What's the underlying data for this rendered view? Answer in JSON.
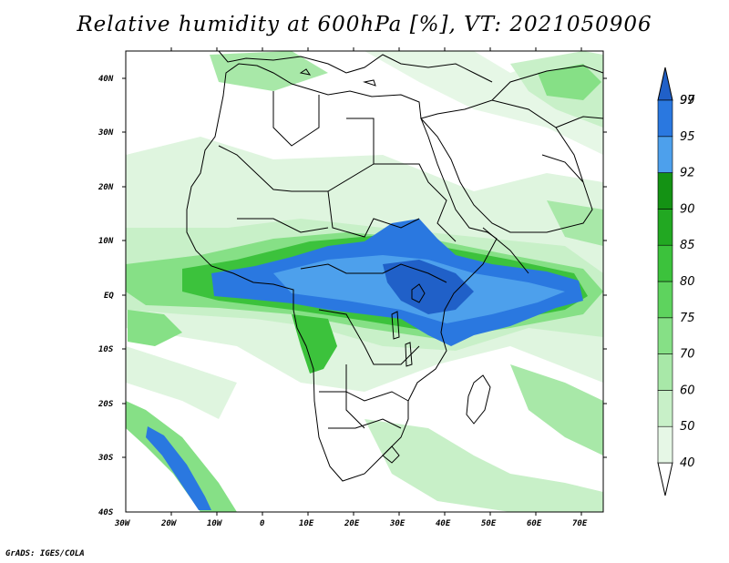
{
  "title": "Relative humidity at 600hPa [%], VT: 2021050906",
  "credit": "GrADS: IGES/COLA",
  "lat_labels": [
    "40N",
    "30N",
    "20N",
    "10N",
    "EQ",
    "10S",
    "20S",
    "30S",
    "40S"
  ],
  "lon_labels": [
    "30W",
    "20W",
    "10W",
    "0",
    "10E",
    "20E",
    "30E",
    "40E",
    "50E",
    "60E",
    "70E"
  ],
  "colorbar": {
    "levels": [
      "40",
      "50",
      "60",
      "70",
      "75",
      "80",
      "85",
      "90",
      "92",
      "95",
      "97",
      "99"
    ],
    "colors": [
      "#ffffff",
      "#e6f7e6",
      "#c8f0c8",
      "#a8e8a8",
      "#86e086",
      "#5ed35e",
      "#3cc23c",
      "#22a822",
      "#149214",
      "#4da0ec",
      "#2a78e0",
      "#2060c8"
    ]
  },
  "map": {
    "extent": {
      "lon_min": -30,
      "lon_max": 75,
      "lat_min": -40,
      "lat_max": 45
    },
    "land_color": "#ffffff",
    "boundary_color": "#000000"
  }
}
